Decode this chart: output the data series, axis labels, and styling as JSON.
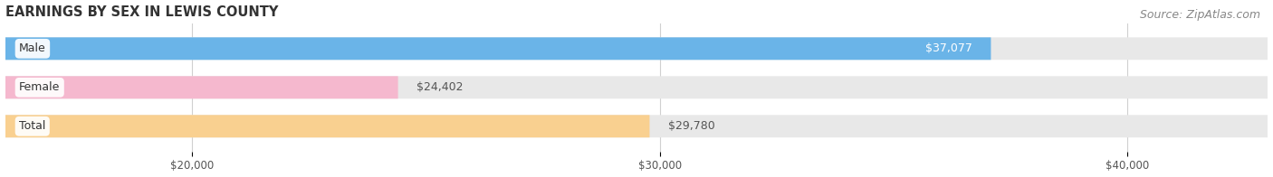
{
  "title": "EARNINGS BY SEX IN LEWIS COUNTY",
  "source": "Source: ZipAtlas.com",
  "categories": [
    "Male",
    "Female",
    "Total"
  ],
  "values": [
    37077,
    24402,
    29780
  ],
  "bar_colors": [
    "#6ab4e8",
    "#f5b8ce",
    "#f9d090"
  ],
  "value_labels": [
    "$37,077",
    "$24,402",
    "$29,780"
  ],
  "category_labels": [
    "Male",
    "Female",
    "Total"
  ],
  "xticks": [
    20000,
    30000,
    40000
  ],
  "xtick_labels": [
    "$20,000",
    "$30,000",
    "$40,000"
  ],
  "xmin": 16000,
  "xmax": 43000,
  "background_color": "#ffffff",
  "bar_bg_color": "#e8e8e8",
  "grid_color": "#d0d0d0",
  "title_fontsize": 10.5,
  "tick_fontsize": 8.5,
  "source_fontsize": 9,
  "bar_value_label_colors": [
    "#ffffff",
    "#555555",
    "#555555"
  ]
}
